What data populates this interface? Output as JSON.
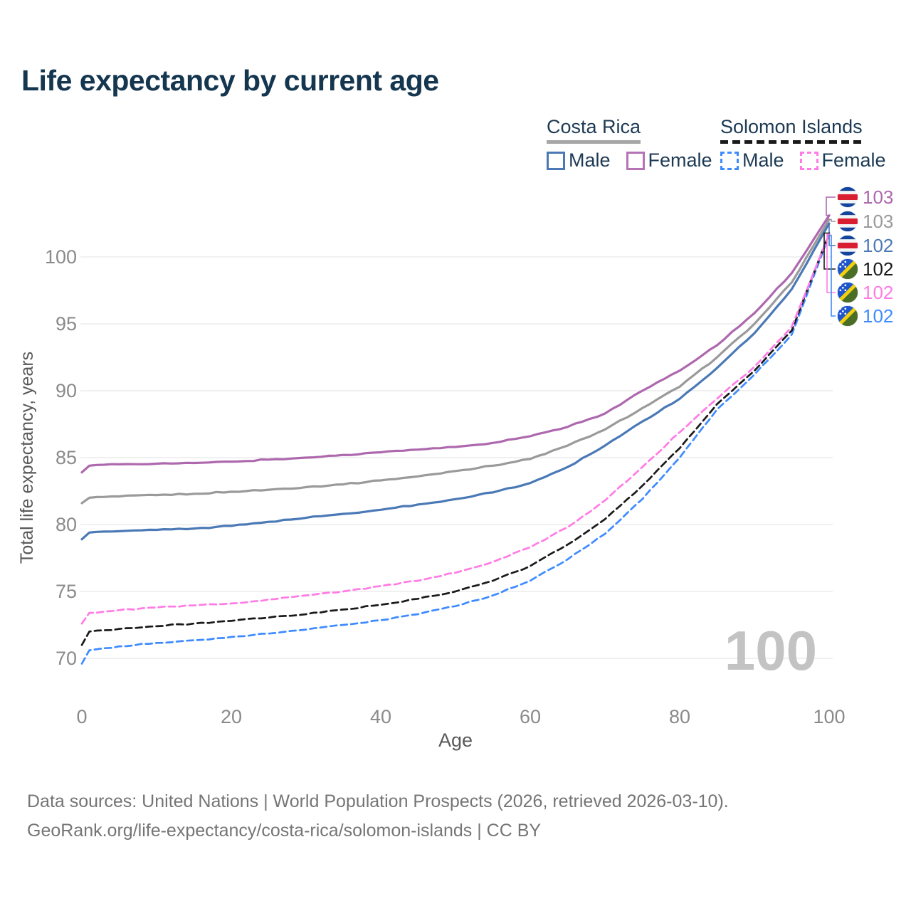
{
  "title": "Life expectancy by current age",
  "legend": {
    "costa_rica": {
      "name": "Costa Rica",
      "male_label": "Male",
      "female_label": "Female",
      "male_color": "#4a79b6",
      "female_color": "#b573b5"
    },
    "solomon_islands": {
      "name": "Solomon Islands",
      "male_label": "Male",
      "female_label": "Female",
      "male_color": "#3e8bff",
      "female_color": "#ff7be5"
    }
  },
  "watermark": "100",
  "footer": {
    "line1": "Data sources: United Nations | World Population Prospects (2026, retrieved 2026-03-10).",
    "line2": "GeoRank.org/life-expectancy/costa-rica/solomon-islands | CC BY"
  },
  "flag_colors": {
    "costa_rica": {
      "blue": "#14459c",
      "white": "#f4f4f4",
      "red": "#d91e31"
    },
    "solomon_islands": {
      "blue": "#1f55cc",
      "green": "#4a6d28",
      "yellow": "#f2d00e",
      "star": "#ffffff"
    }
  },
  "chart_data": {
    "type": "line",
    "title": "Life expectancy by current age",
    "xlabel": "Age",
    "ylabel": "Total life expectancy, years",
    "xticks": [
      0,
      20,
      40,
      60,
      80,
      100
    ],
    "yticks": [
      70,
      75,
      80,
      85,
      90,
      95,
      100
    ],
    "xlim": [
      0,
      100
    ],
    "ylim": [
      68,
      104
    ],
    "grid": "horizontal",
    "legend_position": "top-right",
    "ages": [
      0,
      1,
      5,
      10,
      15,
      20,
      25,
      30,
      35,
      40,
      45,
      50,
      55,
      60,
      65,
      70,
      75,
      80,
      85,
      90,
      95,
      100
    ],
    "series": [
      {
        "id": "costa-rica-female",
        "country": "Costa Rica",
        "sex": "Female",
        "color": "#ad68ae",
        "dash": false,
        "end_label": "103",
        "flag": "costa_rica",
        "values": [
          83.9,
          84.4,
          84.5,
          84.55,
          84.6,
          84.7,
          84.85,
          85.0,
          85.2,
          85.4,
          85.6,
          85.8,
          86.1,
          86.6,
          87.3,
          88.3,
          90.0,
          91.5,
          93.4,
          95.8,
          98.8,
          103.1
        ]
      },
      {
        "id": "costa-rica-both",
        "country": "Costa Rica",
        "sex": "Both sexes",
        "color": "#9a9a9a",
        "dash": false,
        "end_label": "103",
        "flag": "costa_rica",
        "values": [
          81.6,
          82.0,
          82.1,
          82.2,
          82.3,
          82.45,
          82.6,
          82.8,
          83.0,
          83.3,
          83.6,
          84.0,
          84.4,
          84.9,
          85.9,
          87.1,
          88.7,
          90.3,
          92.5,
          95.0,
          98.1,
          102.8
        ]
      },
      {
        "id": "costa-rica-male",
        "country": "Costa Rica",
        "sex": "Male",
        "color": "#4a79b6",
        "dash": false,
        "end_label": "102",
        "flag": "costa_rica",
        "values": [
          78.9,
          79.4,
          79.5,
          79.6,
          79.7,
          79.9,
          80.2,
          80.5,
          80.8,
          81.1,
          81.5,
          81.9,
          82.4,
          83.1,
          84.3,
          85.9,
          87.7,
          89.4,
          91.7,
          94.3,
          97.6,
          102.5
        ]
      },
      {
        "id": "solomon-islands-both",
        "country": "Solomon Islands",
        "sex": "Both sexes",
        "color": "#1a1a1a",
        "dash": true,
        "end_label": "102",
        "flag": "solomon_islands",
        "values": [
          71.0,
          72.0,
          72.2,
          72.4,
          72.6,
          72.8,
          73.05,
          73.3,
          73.65,
          74.0,
          74.45,
          75.0,
          75.8,
          76.9,
          78.5,
          80.4,
          82.9,
          85.7,
          89.0,
          91.5,
          94.5,
          101.78
        ]
      },
      {
        "id": "solomon-islands-female",
        "country": "Solomon Islands",
        "sex": "Female",
        "color": "#ff7be5",
        "dash": true,
        "end_label": "102",
        "flag": "solomon_islands",
        "values": [
          72.6,
          73.4,
          73.6,
          73.8,
          73.95,
          74.1,
          74.4,
          74.7,
          75.0,
          75.4,
          75.8,
          76.4,
          77.2,
          78.3,
          79.8,
          81.8,
          84.3,
          86.9,
          89.4,
          91.8,
          94.8,
          101.7
        ]
      },
      {
        "id": "solomon-islands-male",
        "country": "Solomon Islands",
        "sex": "Male",
        "color": "#3e8bff",
        "dash": true,
        "end_label": "102",
        "flag": "solomon_islands",
        "values": [
          69.6,
          70.6,
          70.9,
          71.15,
          71.35,
          71.6,
          71.85,
          72.15,
          72.5,
          72.85,
          73.3,
          73.9,
          74.7,
          75.8,
          77.4,
          79.3,
          81.9,
          85.0,
          88.6,
          91.2,
          94.2,
          101.62
        ]
      }
    ]
  }
}
